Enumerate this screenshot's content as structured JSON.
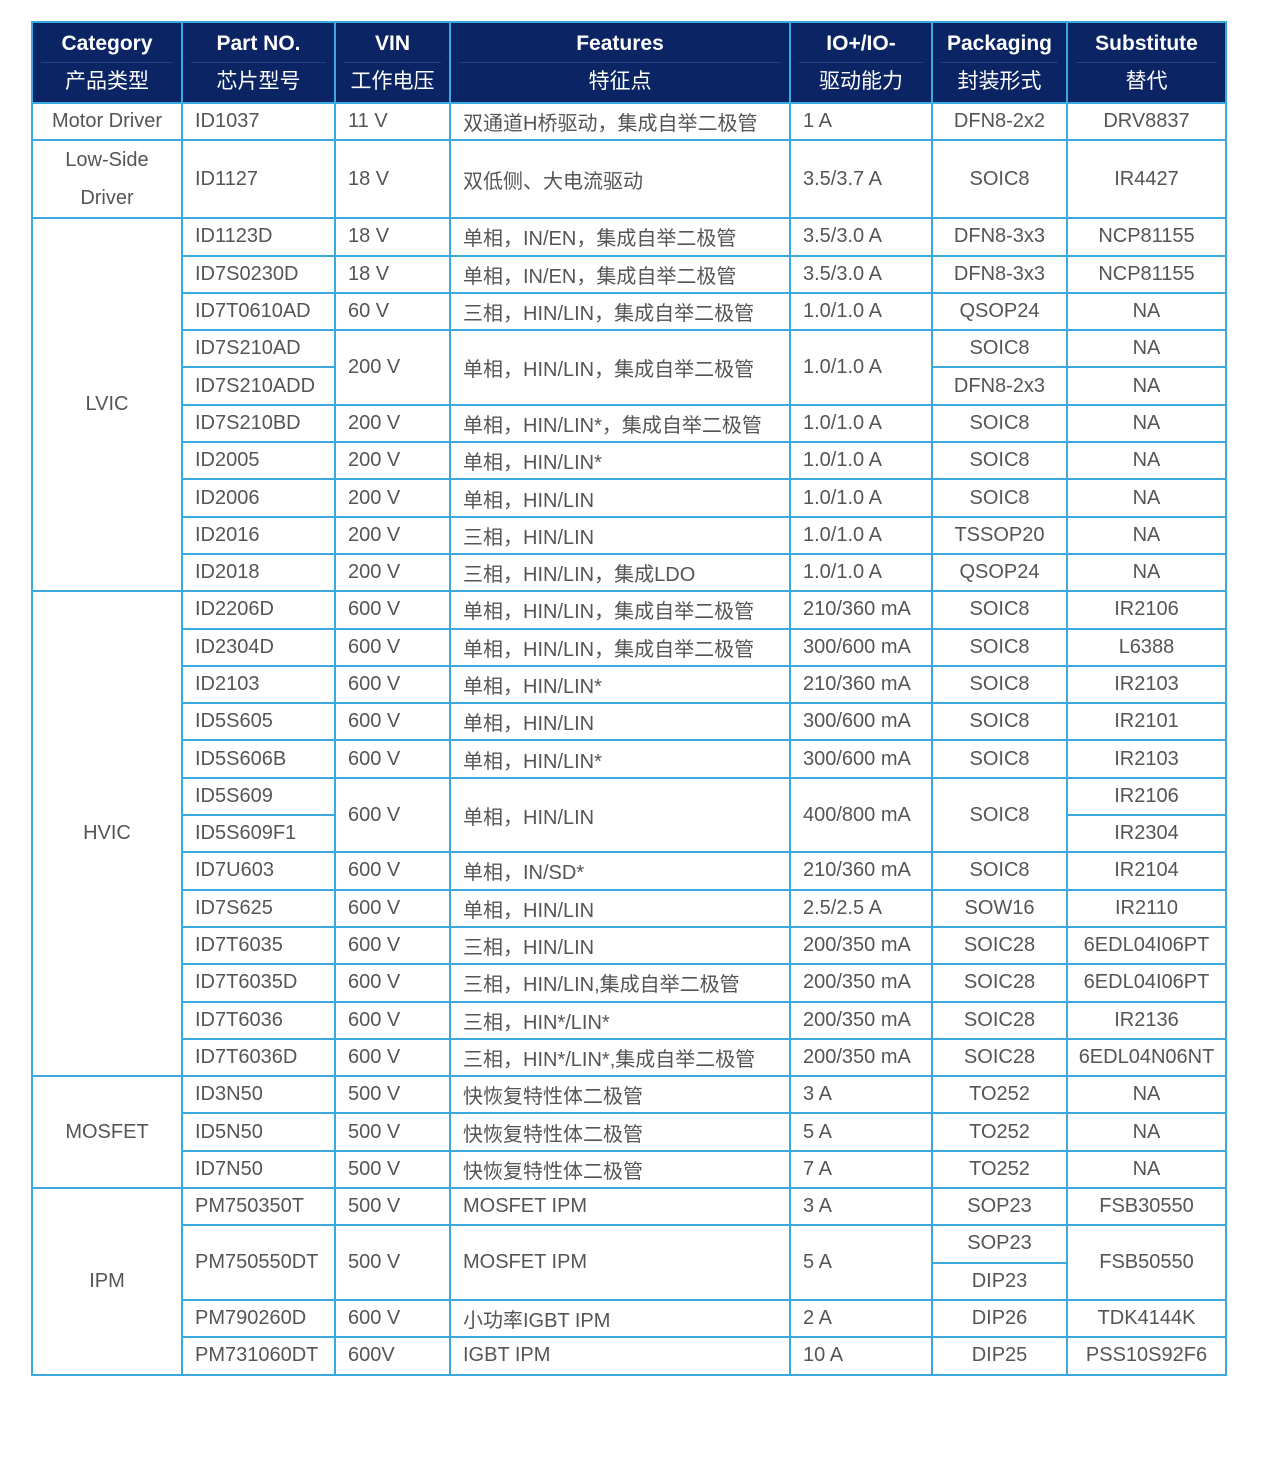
{
  "header": [
    {
      "en": "Category",
      "zh": "产品类型"
    },
    {
      "en": "Part NO.",
      "zh": "芯片型号"
    },
    {
      "en": "VIN",
      "zh": "工作电压"
    },
    {
      "en": "Features",
      "zh": "特征点"
    },
    {
      "en": "IO+/IO-",
      "zh": "驱动能力"
    },
    {
      "en": "Packaging",
      "zh": "封装形式"
    },
    {
      "en": "Substitute",
      "zh": "替代"
    }
  ],
  "rows": [
    [
      "Motor Driver",
      "ID1037",
      "11 V",
      "双通道H桥驱动，集成自举二极管",
      "1 A",
      "DFN8-2x2",
      "DRV8837"
    ],
    [
      "Low-Side Driver",
      "ID1127",
      "18 V",
      "双低侧、大电流驱动",
      "3.5/3.7 A",
      "SOIC8",
      "IR4427"
    ],
    [
      "LVIC",
      "ID1123D",
      "18 V",
      "单相，IN/EN，集成自举二极管",
      "3.5/3.0 A",
      "DFN8-3x3",
      "NCP81155"
    ],
    [
      null,
      "ID7S0230D",
      "18 V",
      "单相，IN/EN，集成自举二极管",
      "3.5/3.0 A",
      "DFN8-3x3",
      "NCP81155"
    ],
    [
      null,
      "ID7T0610AD",
      "60 V",
      "三相，HIN/LIN，集成自举二极管",
      "1.0/1.0 A",
      "QSOP24",
      "NA"
    ],
    [
      null,
      "ID7S210AD",
      "200 V",
      "单相，HIN/LIN，集成自举二极管",
      "1.0/1.0 A",
      "SOIC8",
      "NA"
    ],
    [
      null,
      "ID7S210ADD",
      null,
      null,
      null,
      "DFN8-2x3",
      "NA"
    ],
    [
      null,
      "ID7S210BD",
      "200 V",
      "单相，HIN/LIN*，集成自举二极管",
      "1.0/1.0 A",
      "SOIC8",
      "NA"
    ],
    [
      null,
      "ID2005",
      "200 V",
      "单相，HIN/LIN*",
      "1.0/1.0 A",
      "SOIC8",
      "NA"
    ],
    [
      null,
      "ID2006",
      "200 V",
      "单相，HIN/LIN",
      "1.0/1.0 A",
      "SOIC8",
      "NA"
    ],
    [
      null,
      "ID2016",
      "200 V",
      "三相，HIN/LIN",
      "1.0/1.0 A",
      "TSSOP20",
      "NA"
    ],
    [
      null,
      "ID2018",
      "200 V",
      "三相，HIN/LIN，集成LDO",
      "1.0/1.0 A",
      "QSOP24",
      "NA"
    ],
    [
      "HVIC",
      "ID2206D",
      "600 V",
      "单相，HIN/LIN，集成自举二极管",
      "210/360 mA",
      "SOIC8",
      "IR2106"
    ],
    [
      null,
      "ID2304D",
      "600 V",
      "单相，HIN/LIN，集成自举二极管",
      "300/600 mA",
      "SOIC8",
      "L6388"
    ],
    [
      null,
      "ID2103",
      "600 V",
      "单相，HIN/LIN*",
      "210/360 mA",
      "SOIC8",
      "IR2103"
    ],
    [
      null,
      "ID5S605",
      "600 V",
      "单相，HIN/LIN",
      "300/600 mA",
      "SOIC8",
      "IR2101"
    ],
    [
      null,
      "ID5S606B",
      "600 V",
      "单相，HIN/LIN*",
      "300/600 mA",
      "SOIC8",
      "IR2103"
    ],
    [
      null,
      "ID5S609",
      "600 V",
      "单相，HIN/LIN",
      "400/800 mA",
      "SOIC8",
      "IR2106"
    ],
    [
      null,
      "ID5S609F1",
      null,
      null,
      null,
      null,
      "IR2304"
    ],
    [
      null,
      "ID7U603",
      "600 V",
      "单相，IN/SD*",
      "210/360 mA",
      "SOIC8",
      "IR2104"
    ],
    [
      null,
      "ID7S625",
      "600 V",
      "单相，HIN/LIN",
      "2.5/2.5 A",
      "SOW16",
      "IR2110"
    ],
    [
      null,
      "ID7T6035",
      "600 V",
      "三相，HIN/LIN",
      "200/350 mA",
      "SOIC28",
      "6EDL04I06PT"
    ],
    [
      null,
      "ID7T6035D",
      "600 V",
      "三相，HIN/LIN,集成自举二极管",
      "200/350 mA",
      "SOIC28",
      "6EDL04I06PT"
    ],
    [
      null,
      "ID7T6036",
      "600 V",
      "三相，HIN*/LIN*",
      "200/350 mA",
      "SOIC28",
      "IR2136"
    ],
    [
      null,
      "ID7T6036D",
      "600 V",
      "三相，HIN*/LIN*,集成自举二极管",
      "200/350 mA",
      "SOIC28",
      "6EDL04N06NT"
    ],
    [
      "MOSFET",
      "ID3N50",
      "500 V",
      "快恢复特性体二极管",
      "3 A",
      "TO252",
      "NA"
    ],
    [
      null,
      "ID5N50",
      "500 V",
      "快恢复特性体二极管",
      "5 A",
      "TO252",
      "NA"
    ],
    [
      null,
      "ID7N50",
      "500 V",
      "快恢复特性体二极管",
      "7 A",
      "TO252",
      "NA"
    ],
    [
      "IPM",
      "PM750350T",
      "500 V",
      "MOSFET IPM",
      "3 A",
      "SOP23",
      "FSB30550"
    ],
    [
      null,
      "PM750550DT",
      "500 V",
      "MOSFET IPM",
      "5 A",
      "SOP23",
      "FSB50550"
    ],
    [
      null,
      null,
      null,
      null,
      null,
      "DIP23",
      null
    ],
    [
      null,
      "PM790260D",
      "600 V",
      "小功率IGBT IPM",
      "2 A",
      "DIP26",
      "TDK4144K"
    ],
    [
      null,
      "PM731060DT",
      "600V",
      "IGBT IPM",
      "10 A",
      "DIP25",
      "PSS10S92F6"
    ]
  ],
  "colors": {
    "header_bg": "#0b2464",
    "border": "#3aa9e0",
    "text": "#555555"
  }
}
